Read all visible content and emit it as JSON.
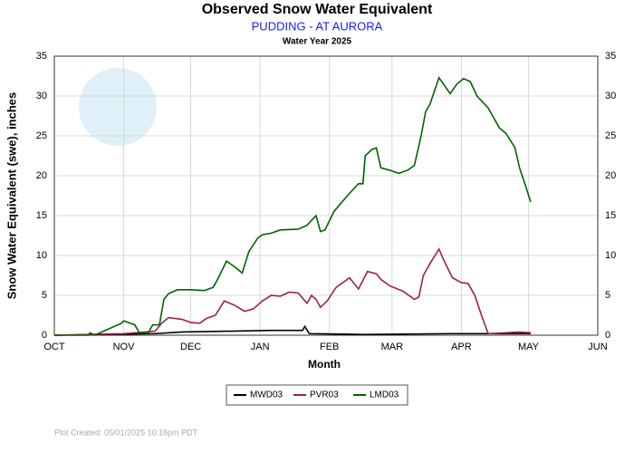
{
  "chart_data": {
    "type": "line",
    "title": "Observed Snow Water Equivalent",
    "subtitle": "PUDDING - AT AURORA",
    "water_year": "Water Year 2025",
    "x_label": "Month",
    "y_label": "Snow Water Equivalent (swe),  inches",
    "footnote": "Plot Created: 05/01/2025 10:16pm PDT",
    "xlim": [
      0,
      243
    ],
    "xticks": [
      {
        "value": 0,
        "label": "OCT"
      },
      {
        "value": 31,
        "label": "NOV"
      },
      {
        "value": 61,
        "label": "DEC"
      },
      {
        "value": 92,
        "label": "JAN"
      },
      {
        "value": 123,
        "label": "FEB"
      },
      {
        "value": 151,
        "label": "MAR"
      },
      {
        "value": 182,
        "label": "APR"
      },
      {
        "value": 212,
        "label": "MAY"
      },
      {
        "value": 243,
        "label": "JUN"
      }
    ],
    "ylim": [
      0,
      35
    ],
    "yticks": [
      0,
      5,
      10,
      15,
      20,
      25,
      30,
      35
    ],
    "y2lim": [
      0,
      35
    ],
    "y2ticks": [
      0,
      5,
      10,
      15,
      20,
      25,
      30,
      35
    ],
    "grid": true,
    "legend": "bottom",
    "series": [
      {
        "name": "MWD03",
        "color": "#000000",
        "x": [
          0,
          45,
          57,
          77,
          97,
          111,
          112,
          114,
          138,
          178,
          213
        ],
        "values": [
          0,
          0.2,
          0.4,
          0.5,
          0.6,
          0.6,
          1.1,
          0.2,
          0.1,
          0.2,
          0.2
        ]
      },
      {
        "name": "PVR03",
        "color": "#a0204a",
        "x": [
          0,
          31,
          45,
          48,
          51,
          57,
          61,
          65,
          68,
          72,
          76,
          81,
          85,
          89,
          93,
          97,
          101,
          105,
          109,
          113,
          115,
          117,
          119,
          122,
          126,
          132,
          136,
          140,
          144,
          146,
          150,
          156,
          161,
          163,
          165,
          168,
          172,
          174,
          178,
          182,
          185,
          188,
          191,
          194,
          202,
          208,
          213
        ],
        "values": [
          0,
          0.2,
          0.5,
          1.5,
          2.2,
          2.0,
          1.6,
          1.5,
          2.1,
          2.5,
          4.3,
          3.7,
          3.0,
          3.3,
          4.3,
          5.0,
          4.9,
          5.4,
          5.3,
          4.0,
          5.0,
          4.5,
          3.5,
          4.3,
          6.0,
          7.2,
          5.8,
          8.0,
          7.7,
          7.0,
          6.2,
          5.5,
          4.5,
          4.8,
          7.5,
          9.0,
          10.8,
          9.5,
          7.2,
          6.6,
          6.5,
          5.0,
          2.5,
          0.2,
          0.3,
          0.4,
          0.3
        ]
      },
      {
        "name": "LMD03",
        "color": "#006400",
        "x": [
          0,
          15,
          16,
          18,
          30,
          31,
          34,
          36,
          38,
          42,
          44,
          47,
          49,
          51,
          55,
          61,
          67,
          71,
          73,
          77,
          81,
          84,
          87,
          91,
          93,
          97,
          101,
          109,
          113,
          117,
          119,
          121,
          125,
          128,
          132,
          136,
          138,
          139,
          142,
          144,
          146,
          150,
          154,
          158,
          161,
          164,
          166,
          168,
          172,
          174,
          177,
          180,
          183,
          186,
          189,
          194,
          199,
          202,
          206,
          208,
          211,
          213
        ],
        "values": [
          0,
          0,
          0.3,
          0,
          1.5,
          1.8,
          1.5,
          1.3,
          0.3,
          0.3,
          1.3,
          1.3,
          4.5,
          5.2,
          5.7,
          5.7,
          5.6,
          6.0,
          7.0,
          9.3,
          8.5,
          7.8,
          10.5,
          12.2,
          12.6,
          12.8,
          13.2,
          13.3,
          13.8,
          15.0,
          13.0,
          13.2,
          15.5,
          16.5,
          17.8,
          19.0,
          19.0,
          22.5,
          23.3,
          23.5,
          21.0,
          20.7,
          20.3,
          20.7,
          21.3,
          25.0,
          28.0,
          29.0,
          32.3,
          31.5,
          30.3,
          31.5,
          32.2,
          31.8,
          30.0,
          28.5,
          26.0,
          25.3,
          23.5,
          21.0,
          18.5,
          16.7
        ]
      }
    ]
  }
}
